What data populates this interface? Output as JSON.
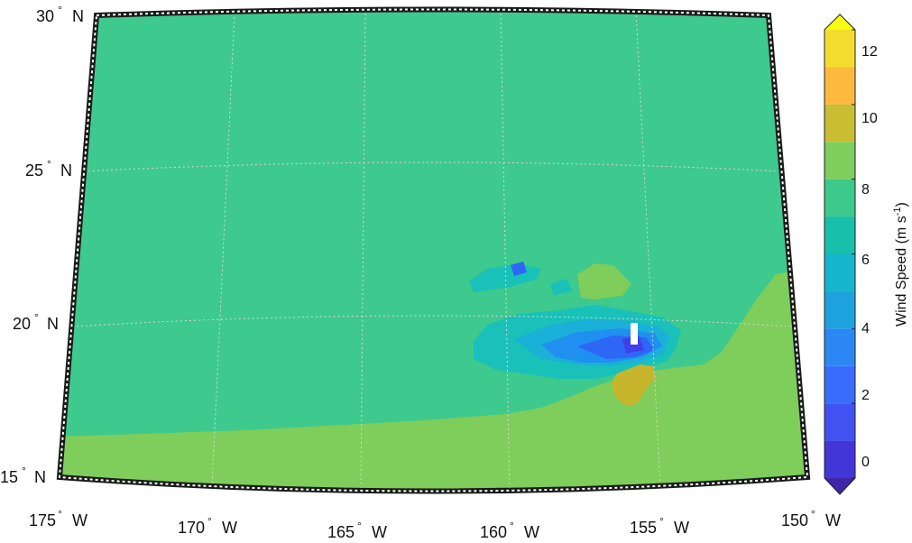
{
  "map": {
    "projection": "conic",
    "lat_labels": [
      {
        "deg": "30",
        "hemi": "N"
      },
      {
        "deg": "25",
        "hemi": "N"
      },
      {
        "deg": "20",
        "hemi": "N"
      },
      {
        "deg": "15",
        "hemi": "N"
      }
    ],
    "lon_labels": [
      {
        "deg": "175",
        "hemi": "W"
      },
      {
        "deg": "170",
        "hemi": "W"
      },
      {
        "deg": "165",
        "hemi": "W"
      },
      {
        "deg": "160",
        "hemi": "W"
      },
      {
        "deg": "155",
        "hemi": "W"
      },
      {
        "deg": "150",
        "hemi": "W"
      }
    ],
    "degree_symbol": "°",
    "colors": {
      "background_field": "#3ec98e",
      "low_field": "#7fcd5a",
      "cyan": "#19c1b9",
      "light_blue": "#1bb0d8",
      "mid_blue": "#1f8ff0",
      "blue": "#2e66f5",
      "deep_blue": "#4040e8",
      "yellow_patch": "#c8b52e",
      "white_gap": "#ffffff",
      "frame_outer": "#1a1a1a",
      "frame_inner": "#ffffff",
      "gridline": "#d8d8d8"
    }
  },
  "colorbar": {
    "title": "Wind Speed (m s",
    "title_sup": "-1",
    "title_close": ")",
    "tick_labels": [
      "0",
      "2",
      "4",
      "6",
      "8",
      "10",
      "12"
    ],
    "levels": [
      {
        "min": -1,
        "max": 0,
        "color": "#3e26a8"
      },
      {
        "min": 0,
        "max": 1,
        "color": "#4336d9"
      },
      {
        "min": 1,
        "max": 2,
        "color": "#4251f1"
      },
      {
        "min": 2,
        "max": 3,
        "color": "#3a6cfb"
      },
      {
        "min": 3,
        "max": 4,
        "color": "#2a87f3"
      },
      {
        "min": 4,
        "max": 5,
        "color": "#1ea2df"
      },
      {
        "min": 5,
        "max": 6,
        "color": "#15b5cb"
      },
      {
        "min": 6,
        "max": 7,
        "color": "#18bfaa"
      },
      {
        "min": 7,
        "max": 8,
        "color": "#3dc98c"
      },
      {
        "min": 8,
        "max": 9,
        "color": "#7fcd5c"
      },
      {
        "min": 9,
        "max": 10,
        "color": "#c8bd33"
      },
      {
        "min": 10,
        "max": 11,
        "color": "#fdb93d"
      },
      {
        "min": 11,
        "max": 12,
        "color": "#f4dc2f"
      },
      {
        "min": 12,
        "max": 13,
        "color": "#f9fb15"
      }
    ],
    "range": [
      -1,
      13
    ]
  }
}
